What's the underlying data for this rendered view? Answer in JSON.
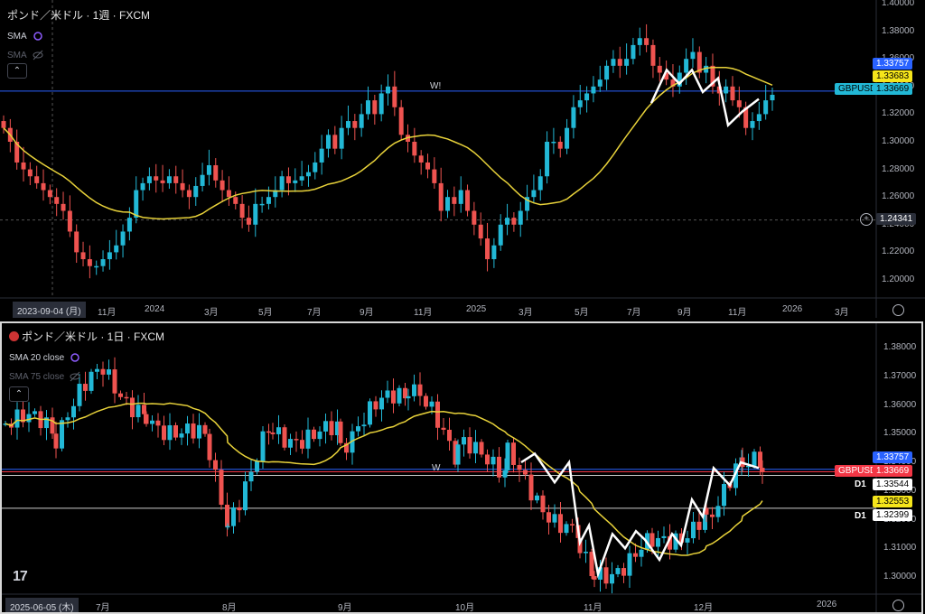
{
  "top": {
    "title": "ポンド／米ドル · 1週 · FXCM",
    "sma_label": "SMA",
    "sma2_label": "SMA",
    "collapse_icon": "chevron-up-icon",
    "watermark": "W!",
    "date_box": "2023-09-04 (月)",
    "x_labels": [
      "11月",
      "2024",
      "3月",
      "5月",
      "7月",
      "9月",
      "11月",
      "2025",
      "3月",
      "5月",
      "7月",
      "9月",
      "11月",
      "2026",
      "3月"
    ],
    "y_labels": [
      "1.40000",
      "1.38000",
      "1.36000",
      "1.34000",
      "1.32000",
      "1.30000",
      "1.28000",
      "1.26000",
      "1.24000",
      "1.22000",
      "1.20000"
    ],
    "tags": {
      "t1": "1.33757",
      "t2": "1.33683",
      "sym": "GBPUSD",
      "price": "1.33669",
      "cross": "1.24341"
    }
  },
  "bottom": {
    "title": "ポンド／米ドル · 1日 · FXCM",
    "sma_label": "SMA 20 close",
    "sma2_label": "SMA 75 close",
    "collapse_icon": "chevron-up-icon",
    "watermark": "W",
    "date_box": "2025-06-05 (木)",
    "logo": "17",
    "x_labels": [
      "7月",
      "8月",
      "9月",
      "10月",
      "11月",
      "12月",
      "2026"
    ],
    "y_labels": [
      "1.38000",
      "1.37000",
      "1.36000",
      "1.35000",
      "1.34000",
      "1.33000",
      "1.32000",
      "1.31000",
      "1.30000"
    ],
    "tags": {
      "t1": "1.33757",
      "sym": "GBPUSD",
      "price": "1.33669",
      "d1a_label": "D1",
      "d1a": "1.33544",
      "sma": "1.32553",
      "d1b_label": "D1",
      "d1b": "1.32399"
    }
  },
  "colors": {
    "up": "#26a69a",
    "upLight": "#22b8d6",
    "down": "#ef5350",
    "sma": "#e8d23a",
    "price": "#22b8d6",
    "blueTag": "#2962ff",
    "yellowTag": "#f5e51b",
    "redTag": "#f23645"
  },
  "chart_data": [
    {
      "type": "candlestick",
      "title": "ポンド／米ドル · 1週 · FXCM",
      "ylim": [
        1.19,
        1.4
      ],
      "description_series": "weekly close, approx",
      "close": [
        1.31,
        1.3,
        1.285,
        1.28,
        1.275,
        1.27,
        1.265,
        1.26,
        1.255,
        1.25,
        1.235,
        1.22,
        1.215,
        1.21,
        1.21,
        1.215,
        1.22,
        1.225,
        1.235,
        1.245,
        1.265,
        1.27,
        1.275,
        1.272,
        1.27,
        1.275,
        1.27,
        1.265,
        1.26,
        1.268,
        1.276,
        1.283,
        1.272,
        1.265,
        1.26,
        1.255,
        1.245,
        1.24,
        1.255,
        1.255,
        1.26,
        1.265,
        1.275,
        1.27,
        1.272,
        1.275,
        1.278,
        1.285,
        1.295,
        1.305,
        1.295,
        1.31,
        1.315,
        1.31,
        1.32,
        1.33,
        1.32,
        1.335,
        1.34,
        1.325,
        1.305,
        1.3,
        1.29,
        1.285,
        1.28,
        1.27,
        1.25,
        1.26,
        1.255,
        1.265,
        1.25,
        1.24,
        1.23,
        1.215,
        1.225,
        1.24,
        1.245,
        1.24,
        1.25,
        1.26,
        1.265,
        1.275,
        1.3,
        1.3,
        1.295,
        1.31,
        1.325,
        1.33,
        1.335,
        1.34,
        1.345,
        1.355,
        1.36,
        1.355,
        1.36,
        1.37,
        1.375,
        1.37,
        1.355,
        1.35,
        1.345,
        1.34,
        1.35,
        1.36,
        1.365,
        1.35,
        1.355,
        1.34,
        1.335,
        1.34,
        1.33,
        1.325,
        1.31,
        1.315,
        1.32,
        1.33,
        1.334
      ],
      "sma": {
        "last": 1.33683
      }
    },
    {
      "type": "candlestick",
      "title": "ポンド／米ドル · 1日 · FXCM",
      "ylim": [
        1.295,
        1.383
      ],
      "close_approx_points": [
        {
          "x": "2025-06-05",
          "y": 1.355
        },
        {
          "x": "2025-06-20",
          "y": 1.35
        },
        {
          "x": "2025-07-01",
          "y": 1.372
        },
        {
          "x": "2025-07-10",
          "y": 1.358
        },
        {
          "x": "2025-07-25",
          "y": 1.345
        },
        {
          "x": "2025-08-01",
          "y": 1.322
        },
        {
          "x": "2025-08-15",
          "y": 1.352
        },
        {
          "x": "2025-09-01",
          "y": 1.348
        },
        {
          "x": "2025-09-15",
          "y": 1.365
        },
        {
          "x": "2025-09-30",
          "y": 1.343
        },
        {
          "x": "2025-10-15",
          "y": 1.34
        },
        {
          "x": "2025-11-01",
          "y": 1.313
        },
        {
          "x": "2025-11-05",
          "y": 1.302
        },
        {
          "x": "2025-11-20",
          "y": 1.31
        },
        {
          "x": "2025-12-01",
          "y": 1.323
        },
        {
          "x": "2025-12-10",
          "y": 1.338
        },
        {
          "x": "2025-12-15",
          "y": 1.3367
        }
      ],
      "sma20_last": 1.32553
    }
  ]
}
